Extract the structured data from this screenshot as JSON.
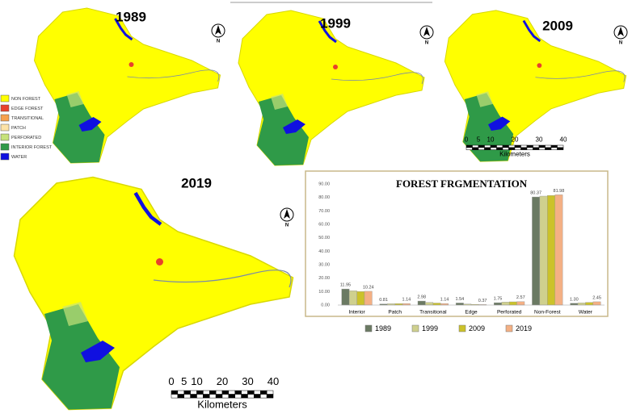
{
  "maps": [
    {
      "year": "1989"
    },
    {
      "year": "1999"
    },
    {
      "year": "2009"
    },
    {
      "year": "2019"
    }
  ],
  "north_label": "N",
  "map_legend": [
    {
      "label": "NON FOREST",
      "color": "#ffff00"
    },
    {
      "label": "EDGE FOREST",
      "color": "#e8412c"
    },
    {
      "label": "TRANSITIONAL",
      "color": "#f6a04d"
    },
    {
      "label": "PATCH",
      "color": "#fde3a7"
    },
    {
      "label": "PERFORATED",
      "color": "#c6e27a"
    },
    {
      "label": "INTERIOR FOREST",
      "color": "#2f9a48"
    },
    {
      "label": "WATER",
      "color": "#1010e0"
    }
  ],
  "scale_bar": {
    "ticks": [
      "0",
      "5",
      "10",
      "20",
      "30",
      "40"
    ],
    "unit": "Kilometers"
  },
  "chart_data": {
    "type": "bar",
    "title": "FOREST FRGMENTATION",
    "categories": [
      "Interior",
      "Patch",
      "Transitional",
      "Edge",
      "Perforated",
      "Non-Forest",
      "Water"
    ],
    "series": [
      {
        "name": "1989",
        "color": "#6b7a63",
        "values": [
          11.95,
          0.81,
          2.98,
          1.54,
          1.75,
          80.37,
          1.3
        ],
        "value_labels": [
          "11.95",
          "0.81",
          "2.98",
          "1.54",
          "1.75",
          "80.37",
          "1.30"
        ]
      },
      {
        "name": "1999",
        "color": "#cfd08e",
        "values": [
          10.6,
          1.0,
          2.0,
          0.8,
          2.2,
          81.0,
          1.6
        ]
      },
      {
        "name": "2009",
        "color": "#cbc22a",
        "values": [
          10.1,
          1.1,
          1.5,
          0.5,
          2.4,
          81.5,
          2.0
        ]
      },
      {
        "name": "2019",
        "color": "#f4b084",
        "values": [
          10.24,
          1.14,
          1.14,
          0.37,
          2.57,
          81.98,
          2.45
        ],
        "value_labels": [
          "10.24",
          "1.14",
          "1.14",
          "0.37",
          "2.57",
          "81.98",
          "2.45"
        ]
      }
    ],
    "ylim": [
      0,
      90
    ],
    "yticks": [
      {
        "value": 0,
        "label": "0.00"
      },
      {
        "value": 10,
        "label": "10.00"
      },
      {
        "value": 20,
        "label": "20.00"
      },
      {
        "value": 30,
        "label": "30.00"
      },
      {
        "value": 40,
        "label": "40.00"
      },
      {
        "value": 50,
        "label": "50.00"
      },
      {
        "value": 60,
        "label": "60.00"
      },
      {
        "value": 70,
        "label": "70.00"
      },
      {
        "value": 80,
        "label": "80.00"
      },
      {
        "value": 90,
        "label": "90.00"
      }
    ],
    "grid": false
  }
}
